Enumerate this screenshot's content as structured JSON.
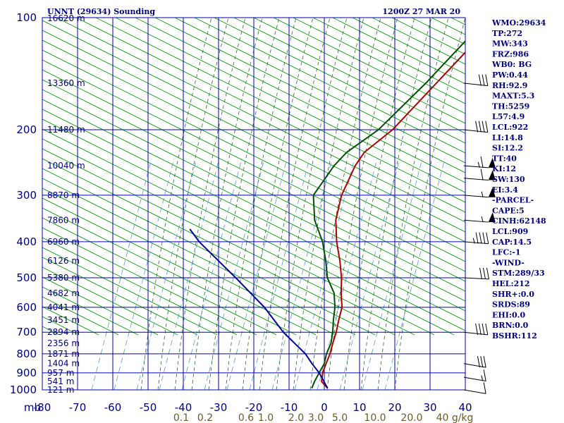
{
  "header": {
    "station": "UNNT (29634) Sounding",
    "time": "1200Z 27 MAR 20"
  },
  "chart_data": {
    "type": "line",
    "title": "UNNT (29634) Sounding",
    "xlabel": "",
    "ylabel": "mb",
    "xlim": [
      -80,
      20
    ],
    "ylim": [
      1000,
      100
    ],
    "yscale": "log",
    "y_ticks": [
      100,
      200,
      300,
      400,
      500,
      600,
      700,
      800,
      900,
      1000
    ],
    "x_ticks": [
      "-80",
      "-70",
      "-60",
      "-50",
      "-40",
      "-30",
      "-20",
      "-10",
      "0",
      "10",
      "20",
      "30",
      "40"
    ],
    "mixing_ratio_labels": [
      "0.1",
      "0.2",
      "0.6",
      "1.0",
      "2.0",
      "3.0",
      "5.0",
      "10.0",
      "20.0",
      "40 g/kg"
    ],
    "height_labels": [
      {
        "p": 100,
        "text": "16620 m"
      },
      {
        "p": 150,
        "text": "13360 m"
      },
      {
        "p": 200,
        "text": "11480 m"
      },
      {
        "p": 250,
        "text": "10040 m"
      },
      {
        "p": 300,
        "text": "8870 m"
      },
      {
        "p": 350,
        "text": "7860 m"
      },
      {
        "p": 400,
        "text": "6960 m"
      },
      {
        "p": 450,
        "text": "6126 m"
      },
      {
        "p": 500,
        "text": "5380 m"
      },
      {
        "p": 550,
        "text": "4682 m"
      },
      {
        "p": 600,
        "text": "4041 m"
      },
      {
        "p": 650,
        "text": "3451 m"
      },
      {
        "p": 700,
        "text": "2894 m"
      },
      {
        "p": 750,
        "text": "2356 m"
      },
      {
        "p": 800,
        "text": "1871 m"
      },
      {
        "p": 850,
        "text": "1404 m"
      },
      {
        "p": 900,
        "text": "957 m"
      },
      {
        "p": 950,
        "text": "541 m"
      },
      {
        "p": 1000,
        "text": "121 m"
      }
    ],
    "series": [
      {
        "color": "#b00000",
        "points": [
          [
            100,
            -51
          ],
          [
            150,
            -51
          ],
          [
            200,
            -51
          ],
          [
            230,
            -53
          ],
          [
            250,
            -52
          ],
          [
            300,
            -48
          ],
          [
            350,
            -43
          ],
          [
            400,
            -37
          ],
          [
            450,
            -31
          ],
          [
            500,
            -26
          ],
          [
            550,
            -22
          ],
          [
            600,
            -18
          ],
          [
            650,
            -15.5
          ],
          [
            700,
            -13
          ],
          [
            750,
            -11
          ],
          [
            800,
            -9
          ],
          [
            850,
            -7.5
          ],
          [
            900,
            -6
          ],
          [
            950,
            -4
          ],
          [
            990,
            -0.5
          ]
        ]
      },
      {
        "color": "#005000",
        "points": [
          [
            100,
            -54
          ],
          [
            150,
            -54
          ],
          [
            200,
            -55
          ],
          [
            230,
            -58
          ],
          [
            250,
            -58
          ],
          [
            300,
            -56
          ],
          [
            350,
            -49
          ],
          [
            400,
            -41
          ],
          [
            450,
            -35
          ],
          [
            500,
            -30
          ],
          [
            550,
            -24
          ],
          [
            600,
            -20
          ],
          [
            650,
            -17
          ],
          [
            700,
            -14
          ],
          [
            750,
            -11.5
          ],
          [
            800,
            -10
          ],
          [
            850,
            -8
          ],
          [
            900,
            -7
          ],
          [
            950,
            -6
          ],
          [
            990,
            -5
          ]
        ]
      },
      {
        "color": "#0000a0",
        "points": [
          [
            990,
            -0.5
          ],
          [
            900,
            -7
          ],
          [
            850,
            -11.5
          ],
          [
            800,
            -16
          ],
          [
            700,
            -28
          ],
          [
            600,
            -40
          ],
          [
            500,
            -56
          ],
          [
            400,
            -76
          ],
          [
            370,
            -82
          ]
        ]
      }
    ],
    "wind_barbs": [
      {
        "p": 150,
        "dir": 290,
        "kt": 30
      },
      {
        "p": 200,
        "dir": 290,
        "kt": 40
      },
      {
        "p": 250,
        "dir": 285,
        "kt": 65
      },
      {
        "p": 270,
        "dir": 285,
        "kt": 60
      },
      {
        "p": 300,
        "dir": 285,
        "kt": 55
      },
      {
        "p": 350,
        "dir": 285,
        "kt": 55
      },
      {
        "p": 400,
        "dir": 285,
        "kt": 45
      },
      {
        "p": 500,
        "dir": 280,
        "kt": 30
      },
      {
        "p": 700,
        "dir": 290,
        "kt": 40
      },
      {
        "p": 850,
        "dir": 300,
        "kt": 30
      },
      {
        "p": 925,
        "dir": 300,
        "kt": 15
      },
      {
        "p": 1000,
        "dir": 300,
        "kt": 10
      }
    ],
    "grid": true
  },
  "indices": [
    "WMO:29634",
    "TP:272",
    "MW:343",
    "FRZ:986",
    "WB0: BG",
    "PW:0.44",
    "RH:92.9",
    "MAXT:5.3",
    "TH:5259",
    "L57:4.9",
    "LCL:922",
    "LI:14.8",
    "SI:12.2",
    "TT:40",
    "KI:12",
    "SW:130",
    "EI:3.4",
    "-PARCEL-",
    "CAPE:5",
    "CINH:62148",
    "LCL:909",
    "CAP:14.5",
    "LFC:-1",
    "-WIND-",
    "STM:289/33",
    "HEL:212",
    "SHR+:0.0",
    "SRDS:89",
    "EHI:0.0",
    "BRN:0.0",
    "BSHR:112"
  ],
  "colors": {
    "grid": "#0000b0",
    "dry_adiabat": "#00a000",
    "moist_adiabat": "#336633",
    "mixing_ratio": "#5599dd",
    "temperature": "#b00000",
    "dewpoint": "#005000",
    "parcel": "#0000a0"
  }
}
